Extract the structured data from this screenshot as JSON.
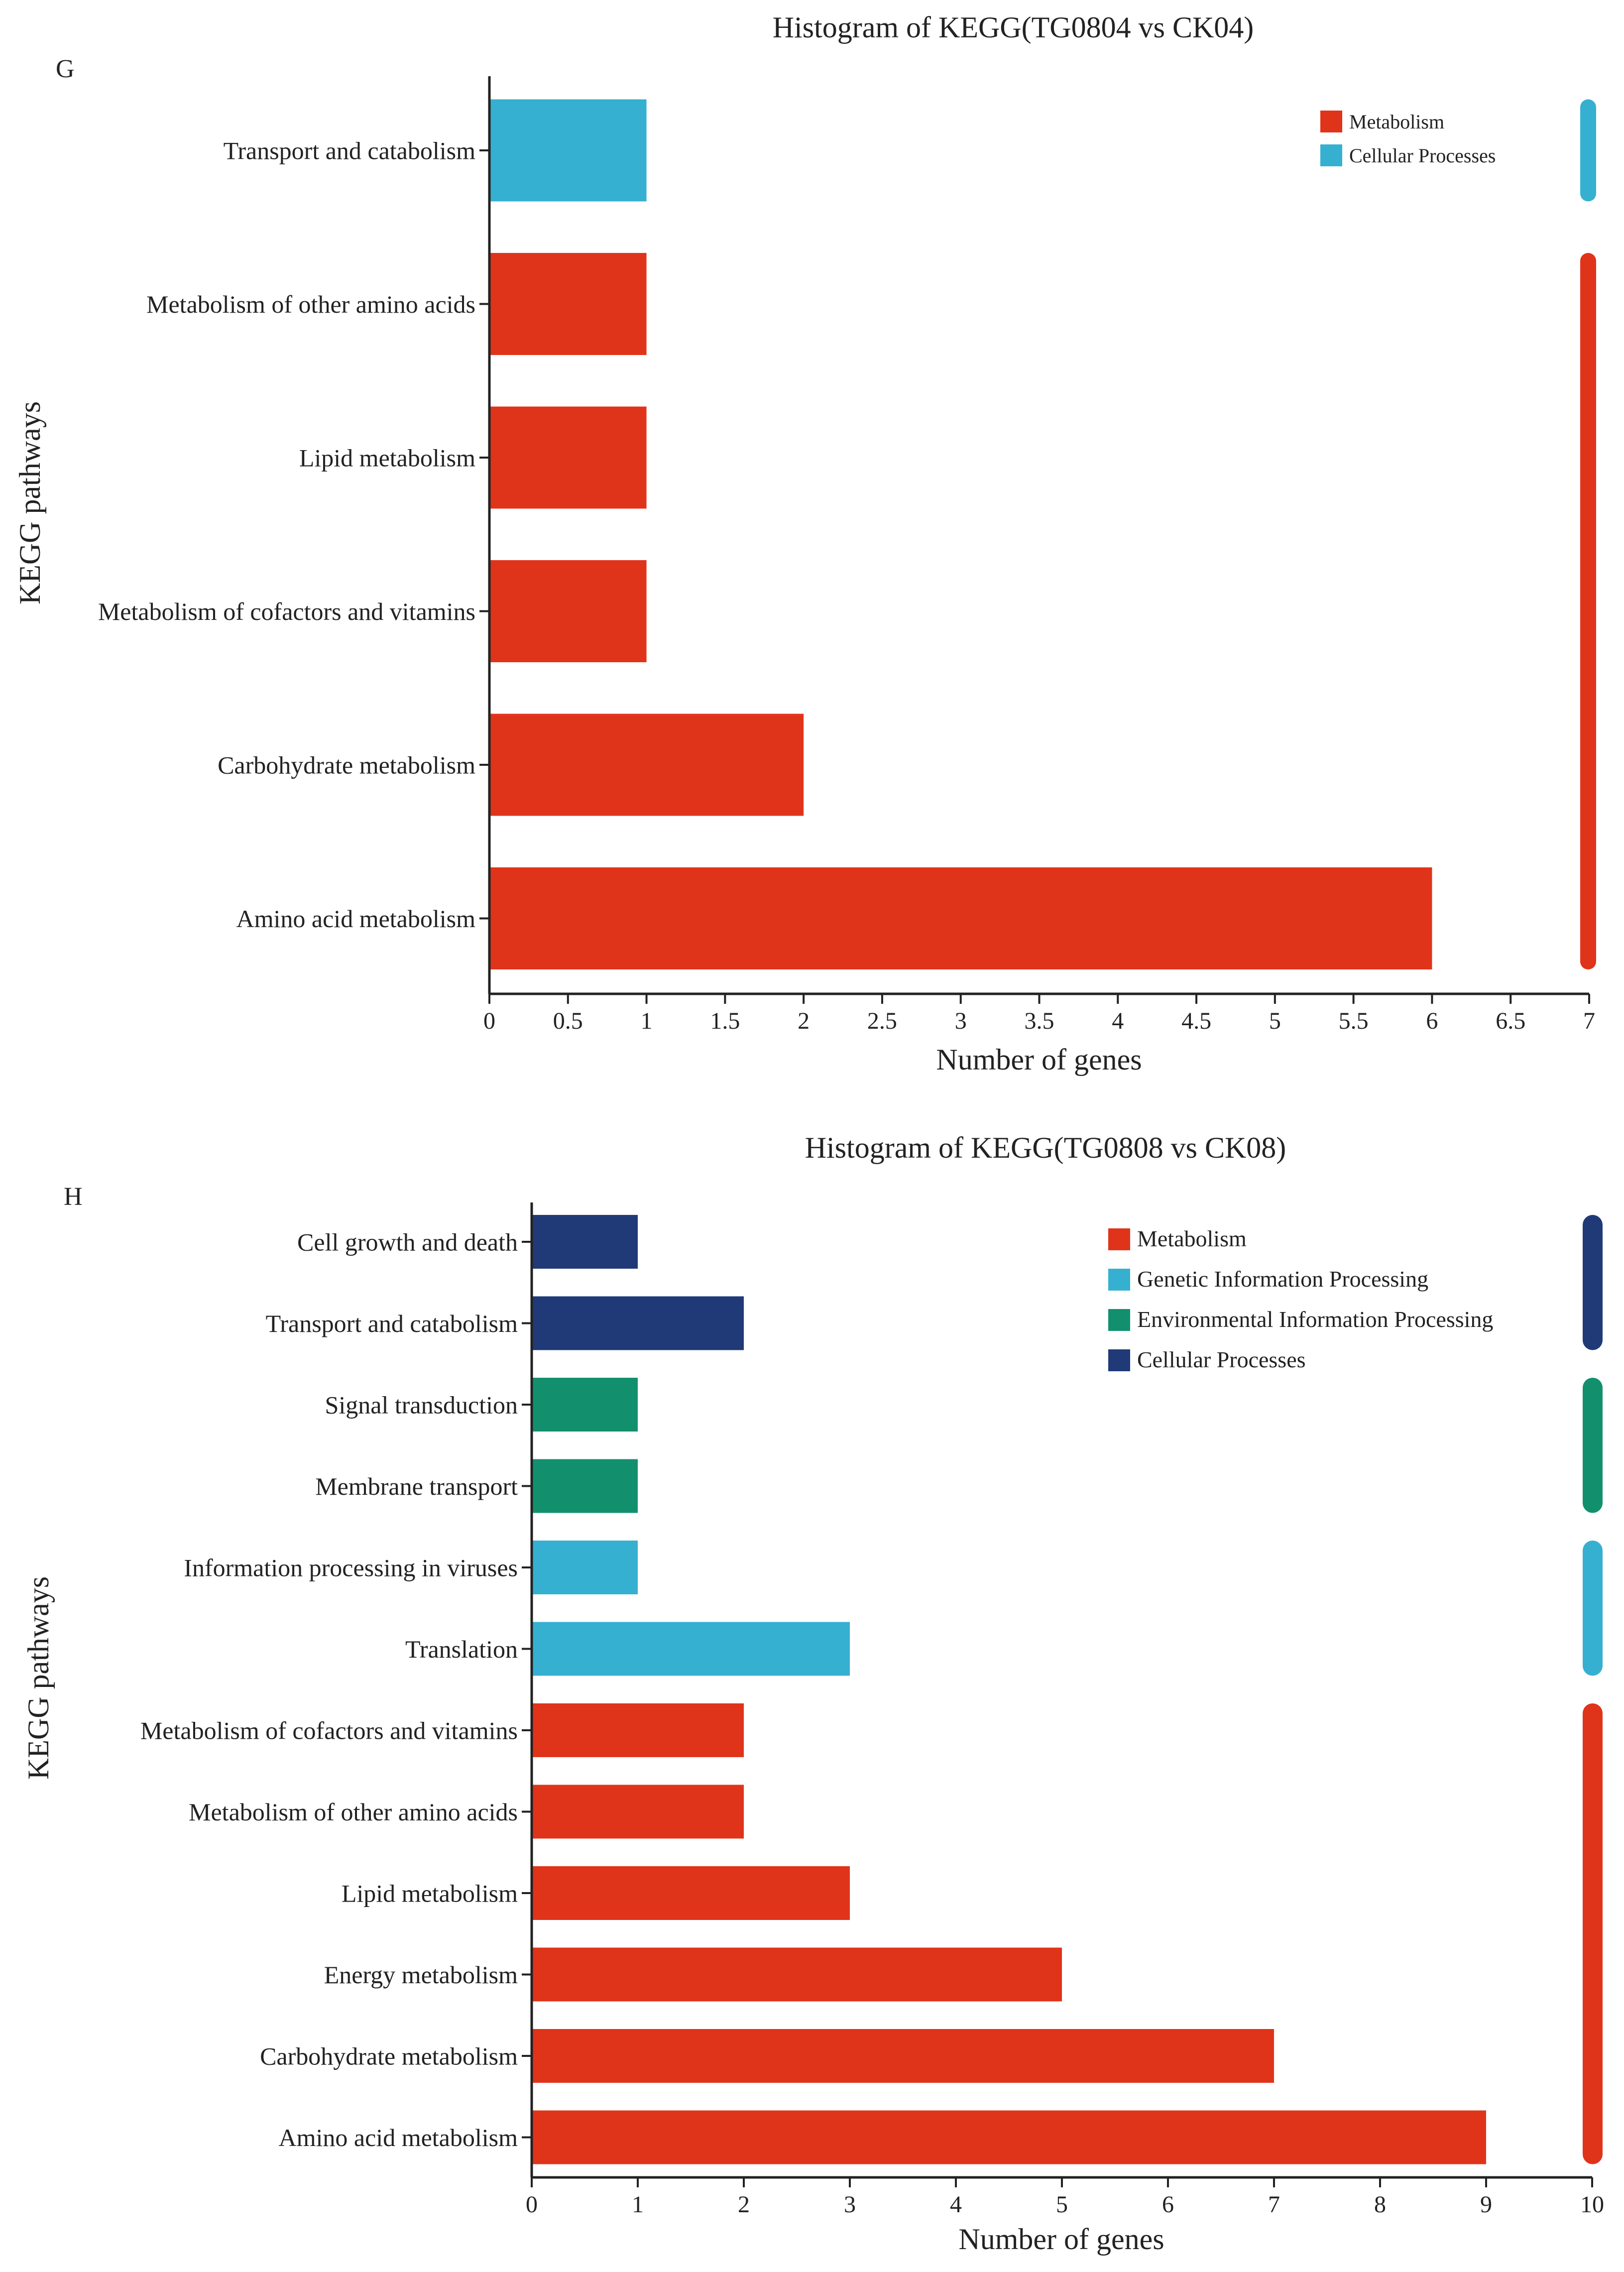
{
  "chart_data": [
    {
      "panel_label": "G",
      "type": "bar",
      "orientation": "horizontal",
      "title": "Histogram of KEGG(TG0804 vs CK04)",
      "xlabel": "Number of genes",
      "ylabel": "KEGG pathways",
      "xlim": [
        0,
        7
      ],
      "xticks": [
        "0",
        "0.5",
        "1",
        "1.5",
        "2",
        "2.5",
        "3",
        "3.5",
        "4",
        "4.5",
        "5",
        "5.5",
        "6",
        "6.5",
        "7"
      ],
      "categories": [
        "Transport and catabolism",
        "Metabolism of other amino acids",
        "Lipid metabolism",
        "Metabolism of cofactors and vitamins",
        "Carbohydrate metabolism",
        "Amino acid metabolism"
      ],
      "values": [
        1,
        1,
        1,
        1,
        2,
        6
      ],
      "groups": [
        "Cellular Processes",
        "Metabolism",
        "Metabolism",
        "Metabolism",
        "Metabolism",
        "Metabolism"
      ],
      "legend": [
        {
          "name": "Metabolism",
          "color": "#e0341a"
        },
        {
          "name": "Cellular Processes",
          "color": "#36b0d1"
        }
      ],
      "legend_position": "top-right"
    },
    {
      "panel_label": "H",
      "type": "bar",
      "orientation": "horizontal",
      "title": "Histogram of KEGG(TG0808 vs CK08)",
      "xlabel": "Number of genes",
      "ylabel": "KEGG pathways",
      "xlim": [
        0,
        10
      ],
      "xticks": [
        "0",
        "1",
        "2",
        "3",
        "4",
        "5",
        "6",
        "7",
        "8",
        "9",
        "10"
      ],
      "categories": [
        "Cell growth and death",
        "Transport and catabolism",
        "Signal transduction",
        "Membrane transport",
        "Information processing in viruses",
        "Translation",
        "Metabolism of cofactors and vitamins",
        "Metabolism of other amino acids",
        "Lipid metabolism",
        "Energy metabolism",
        "Carbohydrate metabolism",
        "Amino acid metabolism"
      ],
      "values": [
        1,
        2,
        1,
        1,
        1,
        3,
        2,
        2,
        3,
        5,
        7,
        9
      ],
      "groups": [
        "Cellular Processes",
        "Cellular Processes",
        "Environmental Information Processing",
        "Environmental Information Processing",
        "Genetic Information Processing",
        "Genetic Information Processing",
        "Metabolism",
        "Metabolism",
        "Metabolism",
        "Metabolism",
        "Metabolism",
        "Metabolism"
      ],
      "legend": [
        {
          "name": "Metabolism",
          "color": "#e0341a"
        },
        {
          "name": "Genetic Information Processing",
          "color": "#36b0d1"
        },
        {
          "name": "Environmental Information Processing",
          "color": "#12906e"
        },
        {
          "name": "Cellular Processes",
          "color": "#203a78"
        }
      ],
      "legend_position": "top-right"
    }
  ]
}
